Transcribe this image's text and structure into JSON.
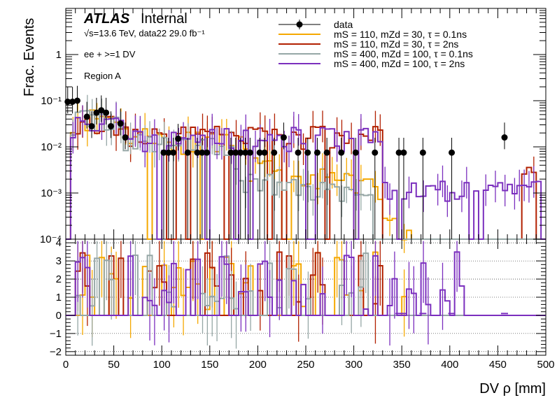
{
  "chart_data": [
    {
      "type": "histogram",
      "panel": "main",
      "ylabel": "Frac. Events",
      "yscale": "log",
      "ylim": [
        0.0001,
        10
      ],
      "xlim": [
        0,
        500
      ],
      "y_tick_labels": [
        "10⁻⁴",
        "10⁻³",
        "10⁻²",
        "10⁻¹",
        "1"
      ],
      "title": {
        "experiment": "ATLAS",
        "status": "Internal",
        "energy_lumi": "√s=13.6 TeV, data22 29.0 fb⁻¹",
        "selection": "ee + >=1 DV",
        "region": "Region A"
      },
      "legend": [
        {
          "label": "data",
          "color": "#000000",
          "style": "marker"
        },
        {
          "label": "mS = 110, mZd = 30, τ = 0.1ns",
          "color": "#F5A800",
          "style": "line"
        },
        {
          "label": "mS = 110, mZd = 30, τ = 2ns",
          "color": "#B22000",
          "style": "line"
        },
        {
          "label": "mS = 400, mZd = 100, τ = 0.1ns",
          "color": "#96A7A6",
          "style": "line"
        },
        {
          "label": "mS = 400, mZd = 100, τ = 2ns",
          "color": "#7B2FBE",
          "style": "line"
        }
      ],
      "data_points": {
        "x": [
          2,
          7,
          12,
          22,
          27,
          32,
          37,
          42,
          47,
          57,
          62,
          102,
          107,
          112,
          117,
          127,
          137,
          142,
          147,
          172,
          177,
          182,
          187,
          192,
          202,
          207,
          217,
          227,
          242,
          252,
          262,
          272,
          287,
          302,
          322,
          347,
          352,
          372,
          402,
          457
        ],
        "y": [
          0.095,
          0.095,
          0.1,
          0.045,
          0.028,
          0.055,
          0.062,
          0.055,
          0.028,
          0.032,
          0.016,
          0.0075,
          0.0075,
          0.0075,
          0.015,
          0.0075,
          0.0075,
          0.0075,
          0.0075,
          0.0075,
          0.0075,
          0.0075,
          0.0075,
          0.0075,
          0.0075,
          0.0075,
          0.0075,
          0.016,
          0.0075,
          0.0075,
          0.0075,
          0.0075,
          0.0075,
          0.0075,
          0.0075,
          0.0075,
          0.0075,
          0.0075,
          0.0075,
          0.016
        ]
      }
    },
    {
      "type": "histogram",
      "panel": "ratio",
      "xlabel": "DV ρ [mm]",
      "xlim": [
        0,
        500
      ],
      "ylim": [
        -2.2,
        4.2
      ],
      "x_ticks": [
        0,
        50,
        100,
        150,
        200,
        250,
        300,
        350,
        400,
        450,
        500
      ],
      "y_ticks": [
        -2,
        -1,
        0,
        1,
        2,
        3,
        4
      ],
      "gridlines": "dotted horizontal"
    }
  ]
}
